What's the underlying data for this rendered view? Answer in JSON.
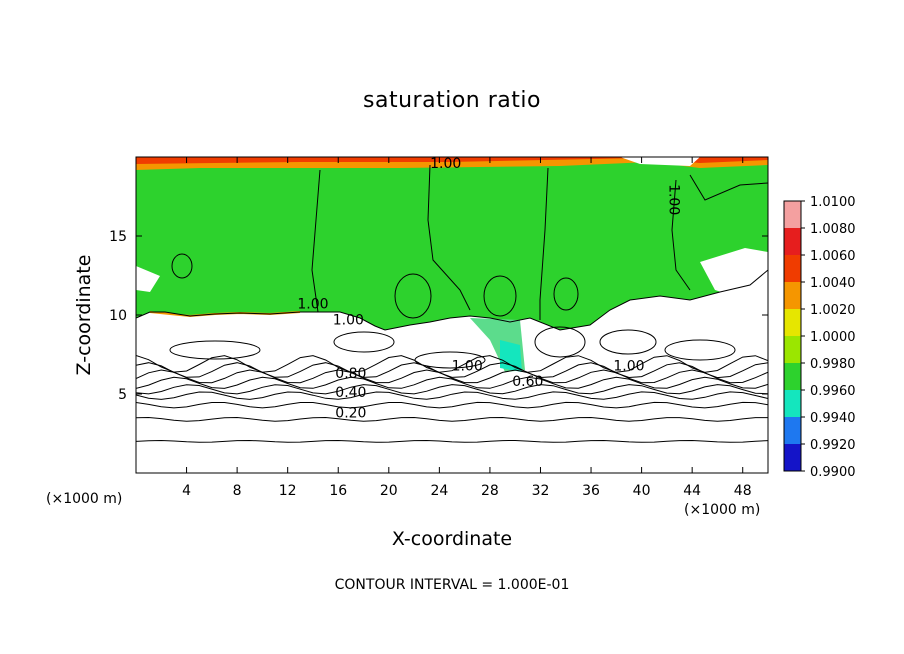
{
  "title": "saturation ratio",
  "footer": "CONTOUR INTERVAL = 1.000E-01",
  "chart_data": {
    "type": "heatmap",
    "title": "saturation ratio",
    "xlabel": "X-coordinate",
    "ylabel": "Z-coordinate",
    "x_unit_label": "(×1000 m)",
    "xlim": [
      0,
      50
    ],
    "ylim": [
      0,
      20
    ],
    "x_ticks": [
      4,
      8,
      12,
      16,
      20,
      24,
      28,
      32,
      36,
      40,
      44,
      48
    ],
    "y_ticks": [
      5,
      10,
      15
    ],
    "contour_interval": 0.1,
    "colorbar": {
      "levels": [
        "1.0100",
        "1.0080",
        "1.0060",
        "1.0040",
        "1.0020",
        "1.0000",
        "0.9980",
        "0.9960",
        "0.9940",
        "0.9920",
        "0.9900"
      ],
      "colors": [
        "#f4a0a0",
        "#e61e1e",
        "#f03c00",
        "#f59600",
        "#e6e600",
        "#9be600",
        "#2dd22d",
        "#14e6be",
        "#1e78f0",
        "#1414c8",
        "#3c0a78"
      ]
    },
    "fill_regions": {
      "saturated_color": "#2dd22d",
      "supersaturated_color": "#f03c00",
      "unsaturated_color": "#ffffff"
    },
    "contour_labels": [
      {
        "text": "1.00",
        "x": 24.5,
        "z": 19.3
      },
      {
        "text": "1.00",
        "x": 42.2,
        "z": 17.3
      },
      {
        "text": "1.00",
        "x": 14.0,
        "z": 10.4
      },
      {
        "text": "1.00",
        "x": 16.8,
        "z": 9.4
      },
      {
        "text": "1.00",
        "x": 26.2,
        "z": 6.5
      },
      {
        "text": "1.00",
        "x": 39.0,
        "z": 6.5
      },
      {
        "text": "0.80",
        "x": 17.0,
        "z": 6.0
      },
      {
        "text": "0.60",
        "x": 31.0,
        "z": 5.5
      },
      {
        "text": "0.40",
        "x": 17.0,
        "z": 4.8
      },
      {
        "text": "0.20",
        "x": 17.0,
        "z": 3.5
      }
    ]
  }
}
